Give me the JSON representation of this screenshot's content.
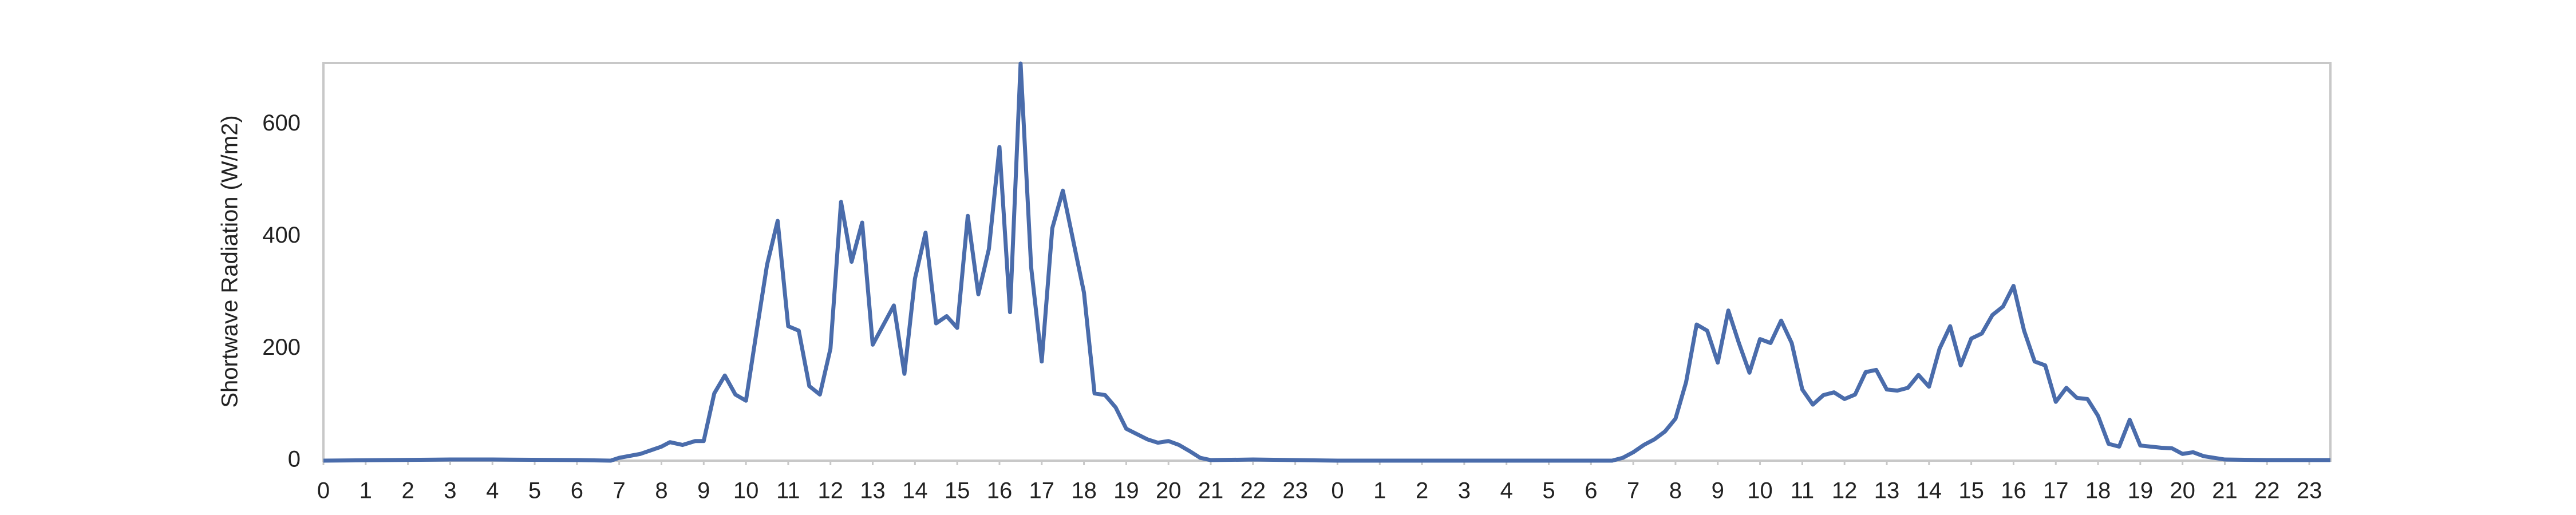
{
  "chart_data": {
    "type": "line",
    "y_label": "Shortwave Radiation (W/m2)",
    "x": [
      0,
      3,
      4,
      6,
      6.8,
      7,
      7.5,
      8,
      8.2,
      8.5,
      8.8,
      9,
      9.25,
      9.5,
      9.75,
      10,
      10.25,
      10.5,
      10.75,
      11,
      11.25,
      11.5,
      11.75,
      12,
      12.25,
      12.5,
      12.75,
      13,
      13.5,
      13.75,
      14,
      14.25,
      14.5,
      14.75,
      15,
      15.25,
      15.5,
      15.75,
      16,
      16.25,
      16.5,
      16.75,
      17,
      17.25,
      17.5,
      18,
      18.25,
      18.5,
      18.75,
      19,
      19.5,
      19.75,
      20,
      20.25,
      20.5,
      20.75,
      21,
      22,
      24,
      30.5,
      30.75,
      31,
      31.25,
      31.5,
      31.75,
      32,
      32.25,
      32.5,
      32.75,
      33,
      33.25,
      33.5,
      33.75,
      34,
      34.25,
      34.5,
      34.75,
      35,
      35.25,
      35.5,
      35.75,
      36,
      36.25,
      36.5,
      36.75,
      37,
      37.25,
      37.5,
      37.75,
      38,
      38.25,
      38.5,
      38.75,
      39,
      39.25,
      39.5,
      39.75,
      40,
      40.25,
      40.5,
      40.75,
      41,
      41.25,
      41.5,
      41.75,
      42,
      42.25,
      42.5,
      42.75,
      43,
      43.5,
      43.75,
      44,
      44.25,
      44.5,
      45,
      46,
      47.5
    ],
    "series": [
      {
        "name": "Shortwave Radiation",
        "color": "#4a6cab",
        "values": [
          0,
          2,
          2,
          1,
          0,
          5,
          12,
          25,
          33,
          28,
          35,
          35,
          120,
          152,
          118,
          107,
          230,
          350,
          428,
          240,
          232,
          133,
          118,
          200,
          462,
          355,
          425,
          207,
          277,
          155,
          325,
          407,
          245,
          258,
          237,
          437,
          297,
          378,
          560,
          265,
          709,
          345,
          177,
          415,
          482,
          300,
          120,
          117,
          95,
          57,
          38,
          32,
          35,
          28,
          17,
          5,
          1,
          2,
          0,
          0,
          5,
          15,
          28,
          38,
          52,
          75,
          140,
          243,
          232,
          175,
          268,
          210,
          157,
          217,
          210,
          250,
          210,
          127,
          100,
          117,
          122,
          110,
          118,
          158,
          162,
          127,
          125,
          130,
          153,
          132,
          200,
          240,
          170,
          218,
          227,
          260,
          275,
          312,
          232,
          177,
          170,
          105,
          130,
          112,
          110,
          80,
          30,
          25,
          73,
          27,
          23,
          22,
          12,
          15,
          8,
          2,
          1,
          1
        ]
      }
    ],
    "xlim": [
      0,
      47.5
    ],
    "xticks": [
      0,
      1,
      2,
      3,
      4,
      5,
      6,
      7,
      8,
      9,
      10,
      11,
      12,
      13,
      14,
      15,
      16,
      17,
      18,
      19,
      20,
      21,
      22,
      23,
      {
        "value": 24,
        "label": "0"
      },
      {
        "value": 25,
        "label": "1"
      },
      {
        "value": 26,
        "label": "2"
      },
      {
        "value": 27,
        "label": "3"
      },
      {
        "value": 28,
        "label": "4"
      },
      {
        "value": 29,
        "label": "5"
      },
      {
        "value": 30,
        "label": "6"
      },
      {
        "value": 31,
        "label": "7"
      },
      {
        "value": 32,
        "label": "8"
      },
      {
        "value": 33,
        "label": "9"
      },
      {
        "value": 34,
        "label": "10"
      },
      {
        "value": 35,
        "label": "11"
      },
      {
        "value": 36,
        "label": "12"
      },
      {
        "value": 37,
        "label": "13"
      },
      {
        "value": 38,
        "label": "14"
      },
      {
        "value": 39,
        "label": "15"
      },
      {
        "value": 40,
        "label": "16"
      },
      {
        "value": 41,
        "label": "17"
      },
      {
        "value": 42,
        "label": "18"
      },
      {
        "value": 43,
        "label": "19"
      },
      {
        "value": 44,
        "label": "20"
      },
      {
        "value": 45,
        "label": "21"
      },
      {
        "value": 46,
        "label": "22"
      },
      {
        "value": 47,
        "label": "23"
      }
    ],
    "ylim": [
      0,
      710
    ],
    "yticks": [
      0,
      200,
      400,
      600
    ],
    "grid": false
  }
}
